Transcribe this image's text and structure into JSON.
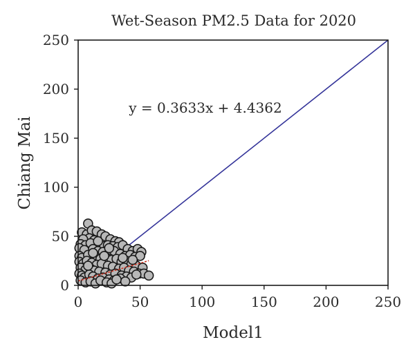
{
  "chart_data": {
    "type": "scatter",
    "title": "Wet-Season PM2.5 Data for 2020",
    "xlabel": "Model1",
    "ylabel": "Chiang Mai",
    "xlim": [
      0,
      250
    ],
    "ylim": [
      0,
      250
    ],
    "xticks": [
      "0",
      "50",
      "100",
      "150",
      "200",
      "250"
    ],
    "yticks": [
      "0",
      "50",
      "100",
      "150",
      "200",
      "250"
    ],
    "grid": false,
    "legend": "none",
    "points": [
      [
        8,
        63
      ],
      [
        3,
        54
      ],
      [
        7,
        52
      ],
      [
        11,
        56
      ],
      [
        15,
        55
      ],
      [
        19,
        52
      ],
      [
        22,
        50
      ],
      [
        9,
        48
      ],
      [
        4,
        47
      ],
      [
        13,
        46
      ],
      [
        26,
        47
      ],
      [
        30,
        45
      ],
      [
        33,
        44
      ],
      [
        2,
        42
      ],
      [
        6,
        41
      ],
      [
        10,
        43
      ],
      [
        17,
        42
      ],
      [
        21,
        40
      ],
      [
        24,
        41
      ],
      [
        28,
        40
      ],
      [
        32,
        39
      ],
      [
        36,
        41
      ],
      [
        40,
        37
      ],
      [
        44,
        35
      ],
      [
        48,
        37
      ],
      [
        51,
        34
      ],
      [
        1,
        38
      ],
      [
        5,
        36
      ],
      [
        12,
        37
      ],
      [
        16,
        35
      ],
      [
        20,
        34
      ],
      [
        25,
        33
      ],
      [
        29,
        35
      ],
      [
        34,
        32
      ],
      [
        38,
        30
      ],
      [
        42,
        31
      ],
      [
        46,
        29
      ],
      [
        50,
        30
      ],
      [
        1,
        30
      ],
      [
        3,
        28
      ],
      [
        8,
        31
      ],
      [
        14,
        29
      ],
      [
        18,
        27
      ],
      [
        23,
        28
      ],
      [
        27,
        26
      ],
      [
        31,
        27
      ],
      [
        35,
        24
      ],
      [
        39,
        25
      ],
      [
        43,
        22
      ],
      [
        47,
        20
      ],
      [
        52,
        18
      ],
      [
        1,
        24
      ],
      [
        4,
        22
      ],
      [
        7,
        25
      ],
      [
        11,
        23
      ],
      [
        15,
        21
      ],
      [
        19,
        22
      ],
      [
        24,
        20
      ],
      [
        28,
        19
      ],
      [
        33,
        17
      ],
      [
        37,
        18
      ],
      [
        41,
        15
      ],
      [
        45,
        14
      ],
      [
        49,
        12
      ],
      [
        53,
        12
      ],
      [
        57,
        10
      ],
      [
        2,
        18
      ],
      [
        6,
        16
      ],
      [
        10,
        17
      ],
      [
        13,
        15
      ],
      [
        17,
        14
      ],
      [
        22,
        13
      ],
      [
        26,
        11
      ],
      [
        30,
        12
      ],
      [
        35,
        10
      ],
      [
        39,
        9
      ],
      [
        43,
        8
      ],
      [
        47,
        11
      ],
      [
        1,
        12
      ],
      [
        3,
        10
      ],
      [
        5,
        8
      ],
      [
        9,
        11
      ],
      [
        12,
        9
      ],
      [
        16,
        7
      ],
      [
        20,
        8
      ],
      [
        25,
        6
      ],
      [
        29,
        5
      ],
      [
        34,
        7
      ],
      [
        38,
        4
      ],
      [
        2,
        5
      ],
      [
        6,
        3
      ],
      [
        10,
        4
      ],
      [
        14,
        2
      ],
      [
        18,
        5
      ],
      [
        23,
        3
      ],
      [
        27,
        2
      ],
      [
        31,
        6
      ],
      [
        8,
        20
      ],
      [
        21,
        30
      ],
      [
        36,
        28
      ],
      [
        44,
        26
      ],
      [
        12,
        33
      ],
      [
        16,
        45
      ],
      [
        25,
        38
      ]
    ],
    "fit_line": {
      "equation": "y = 0.3633x + 4.4362",
      "slope": 0.3633,
      "intercept": 4.4362,
      "x_range": [
        0,
        57
      ],
      "color": "#cc3322"
    },
    "identity_line": {
      "from": [
        0,
        0
      ],
      "to": [
        250,
        250
      ],
      "color": "#333399"
    },
    "marker_fill": "#b8b8b8",
    "marker_stroke": "#1a1a1a"
  }
}
